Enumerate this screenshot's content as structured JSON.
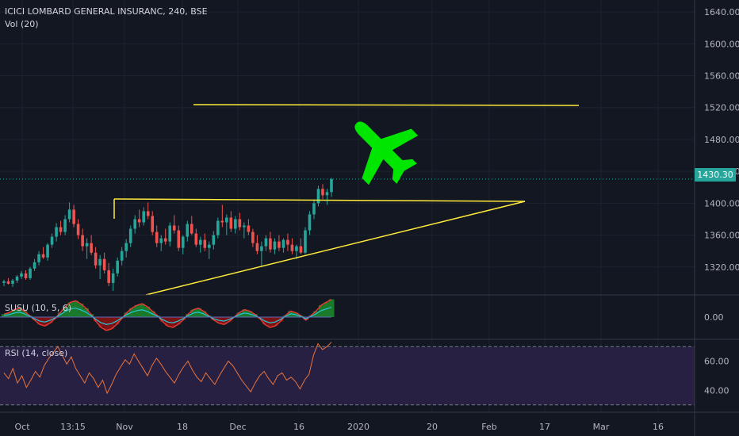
{
  "header": {
    "symbol_title": "ICICI LOMBARD GENERAL INSURANC, 240, BSE",
    "volume_label": "Vol (20)"
  },
  "last_price_label": "1430.30",
  "indicators": {
    "susu_label": "SUSU (10, 5, 6)",
    "rsi_label": "RSI (14, close)"
  },
  "colors": {
    "background": "#131722",
    "up_candle": "#26a69a",
    "down_candle": "#ef5350",
    "trendline": "#ffeb3b",
    "plane_icon": "#00e600",
    "rsi_line": "#e8743b",
    "rsi_band": "#2a2147",
    "susu_fill_up": "#1b7a2a",
    "susu_fill_down": "#7d1414"
  },
  "icons": [
    "airplane-icon"
  ],
  "chart_data": [
    {
      "type": "candlestick",
      "title": "ICICI LOMBARD GENERAL INSURANC, 240, BSE",
      "y_ticks": [
        "1640.00",
        "1600.00",
        "1560.00",
        "1520.00",
        "1480.00",
        "1440.00",
        "1400.00",
        "1360.00",
        "1320.00"
      ],
      "ylim": [
        1285,
        1655
      ],
      "x_ticks": [
        "Oct",
        "13:15",
        "Nov",
        "18",
        "Dec",
        "16",
        "2020",
        "20",
        "Feb",
        "17",
        "Mar",
        "16"
      ],
      "last_price": 1430.3,
      "candles": [
        [
          1300,
          1304,
          1296,
          1302
        ],
        [
          1302,
          1306,
          1298,
          1299
        ],
        [
          1299,
          1305,
          1295,
          1303
        ],
        [
          1303,
          1310,
          1300,
          1308
        ],
        [
          1308,
          1315,
          1305,
          1312
        ],
        [
          1312,
          1316,
          1304,
          1306
        ],
        [
          1306,
          1320,
          1304,
          1318
        ],
        [
          1318,
          1330,
          1315,
          1326
        ],
        [
          1326,
          1340,
          1322,
          1336
        ],
        [
          1336,
          1345,
          1330,
          1332
        ],
        [
          1332,
          1350,
          1328,
          1348
        ],
        [
          1348,
          1362,
          1344,
          1358
        ],
        [
          1358,
          1375,
          1352,
          1370
        ],
        [
          1370,
          1378,
          1360,
          1364
        ],
        [
          1364,
          1385,
          1360,
          1380
        ],
        [
          1380,
          1401,
          1376,
          1392
        ],
        [
          1392,
          1398,
          1370,
          1374
        ],
        [
          1374,
          1380,
          1355,
          1360
        ],
        [
          1360,
          1368,
          1340,
          1346
        ],
        [
          1346,
          1356,
          1330,
          1350
        ],
        [
          1350,
          1360,
          1335,
          1338
        ],
        [
          1338,
          1345,
          1318,
          1322
        ],
        [
          1322,
          1335,
          1305,
          1330
        ],
        [
          1330,
          1338,
          1312,
          1316
        ],
        [
          1316,
          1325,
          1296,
          1300
        ],
        [
          1300,
          1318,
          1290,
          1312
        ],
        [
          1312,
          1332,
          1308,
          1328
        ],
        [
          1328,
          1345,
          1322,
          1340
        ],
        [
          1340,
          1355,
          1332,
          1350
        ],
        [
          1350,
          1372,
          1345,
          1368
        ],
        [
          1368,
          1385,
          1362,
          1380
        ],
        [
          1380,
          1392,
          1370,
          1376
        ],
        [
          1376,
          1395,
          1372,
          1390
        ],
        [
          1390,
          1401,
          1380,
          1384
        ],
        [
          1384,
          1390,
          1360,
          1364
        ],
        [
          1364,
          1372,
          1345,
          1350
        ],
        [
          1350,
          1360,
          1340,
          1356
        ],
        [
          1356,
          1368,
          1348,
          1352
        ],
        [
          1352,
          1376,
          1346,
          1372
        ],
        [
          1372,
          1385,
          1362,
          1366
        ],
        [
          1366,
          1372,
          1340,
          1344
        ],
        [
          1344,
          1360,
          1336,
          1358
        ],
        [
          1358,
          1378,
          1352,
          1374
        ],
        [
          1374,
          1384,
          1360,
          1362
        ],
        [
          1362,
          1368,
          1345,
          1348
        ],
        [
          1348,
          1358,
          1338,
          1354
        ],
        [
          1354,
          1362,
          1340,
          1344
        ],
        [
          1344,
          1352,
          1330,
          1348
        ],
        [
          1348,
          1365,
          1342,
          1360
        ],
        [
          1360,
          1382,
          1356,
          1378
        ],
        [
          1378,
          1398,
          1370,
          1376
        ],
        [
          1376,
          1386,
          1360,
          1382
        ],
        [
          1382,
          1390,
          1364,
          1368
        ],
        [
          1368,
          1384,
          1362,
          1380
        ],
        [
          1380,
          1388,
          1366,
          1370
        ],
        [
          1370,
          1376,
          1356,
          1372
        ],
        [
          1372,
          1380,
          1360,
          1364
        ],
        [
          1364,
          1368,
          1345,
          1350
        ],
        [
          1350,
          1360,
          1336,
          1340
        ],
        [
          1340,
          1352,
          1320,
          1346
        ],
        [
          1346,
          1360,
          1340,
          1356
        ],
        [
          1356,
          1364,
          1338,
          1342
        ],
        [
          1342,
          1356,
          1336,
          1352
        ],
        [
          1352,
          1360,
          1340,
          1344
        ],
        [
          1344,
          1356,
          1338,
          1354
        ],
        [
          1354,
          1362,
          1340,
          1348
        ],
        [
          1348,
          1356,
          1336,
          1340
        ],
        [
          1340,
          1348,
          1330,
          1346
        ],
        [
          1346,
          1356,
          1336,
          1338
        ],
        [
          1338,
          1370,
          1336,
          1366
        ],
        [
          1366,
          1390,
          1360,
          1386
        ],
        [
          1386,
          1405,
          1380,
          1400
        ],
        [
          1400,
          1422,
          1396,
          1418
        ],
        [
          1418,
          1424,
          1405,
          1410
        ],
        [
          1410,
          1418,
          1398,
          1414
        ],
        [
          1414,
          1432,
          1408,
          1430.3
        ]
      ]
    },
    {
      "type": "area",
      "title": "SUSU (10, 5, 6)",
      "y_ticks": [
        "0.00"
      ],
      "ylim": [
        -1.5,
        1.5
      ],
      "series": [
        {
          "values": [
            0.2,
            0.3,
            0.5,
            0.6,
            0.4,
            0.1,
            -0.2,
            -0.5,
            -0.6,
            -0.4,
            -0.1,
            0.3,
            0.7,
            1.0,
            1.1,
            0.9,
            0.6,
            0.2,
            -0.3,
            -0.7,
            -0.9,
            -0.8,
            -0.5,
            -0.1,
            0.3,
            0.6,
            0.8,
            0.9,
            0.7,
            0.4,
            0.1,
            -0.3,
            -0.6,
            -0.7,
            -0.5,
            -0.2,
            0.2,
            0.5,
            0.6,
            0.4,
            0.1,
            -0.2,
            -0.4,
            -0.5,
            -0.3,
            0.0,
            0.3,
            0.5,
            0.4,
            0.2,
            -0.1,
            -0.5,
            -0.7,
            -0.6,
            -0.3,
            0.1,
            0.4,
            0.3,
            0.1,
            -0.2,
            0.1,
            0.4,
            0.8,
            1.0,
            1.2
          ]
        }
      ]
    },
    {
      "type": "line",
      "title": "RSI (14, close)",
      "y_ticks": [
        "60.00",
        "40.00"
      ],
      "ylim": [
        25,
        75
      ],
      "bands": [
        70,
        30
      ],
      "series": [
        {
          "values": [
            52,
            48,
            55,
            45,
            50,
            42,
            47,
            53,
            49,
            57,
            62,
            66,
            70,
            64,
            58,
            63,
            55,
            50,
            45,
            52,
            48,
            42,
            47,
            38,
            44,
            51,
            56,
            61,
            58,
            65,
            60,
            55,
            50,
            57,
            62,
            58,
            53,
            49,
            45,
            51,
            56,
            60,
            54,
            49,
            46,
            52,
            48,
            44,
            50,
            55,
            60,
            57,
            52,
            47,
            43,
            39,
            45,
            50,
            53,
            48,
            44,
            50,
            52,
            47,
            49,
            46,
            41,
            47,
            51,
            64,
            72,
            68,
            70,
            73
          ]
        }
      ]
    }
  ]
}
